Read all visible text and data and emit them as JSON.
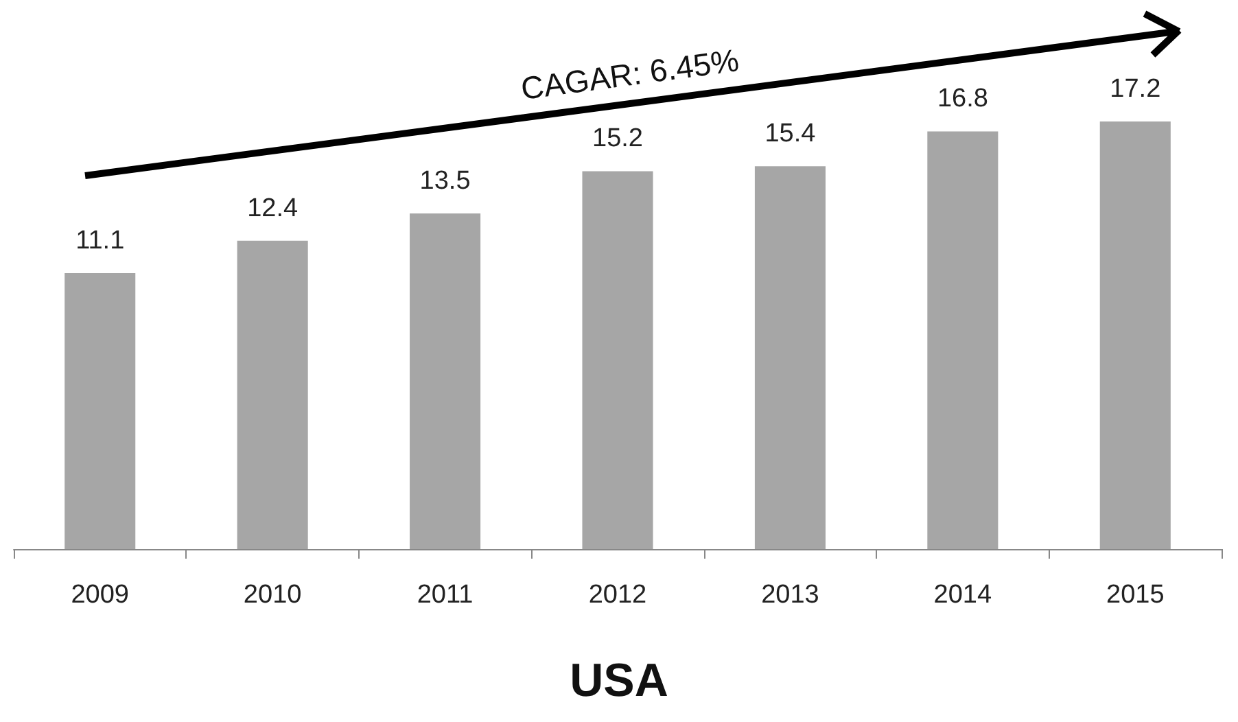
{
  "chart_data": {
    "type": "bar",
    "title": "USA",
    "categories": [
      "2009",
      "2010",
      "2011",
      "2012",
      "2013",
      "2014",
      "2015"
    ],
    "values": [
      11.1,
      12.4,
      13.5,
      15.2,
      15.4,
      16.8,
      17.2
    ],
    "color": "#a6a6a6",
    "data_labels": true,
    "annotations": [
      "CAGAR: 6.45%"
    ]
  }
}
